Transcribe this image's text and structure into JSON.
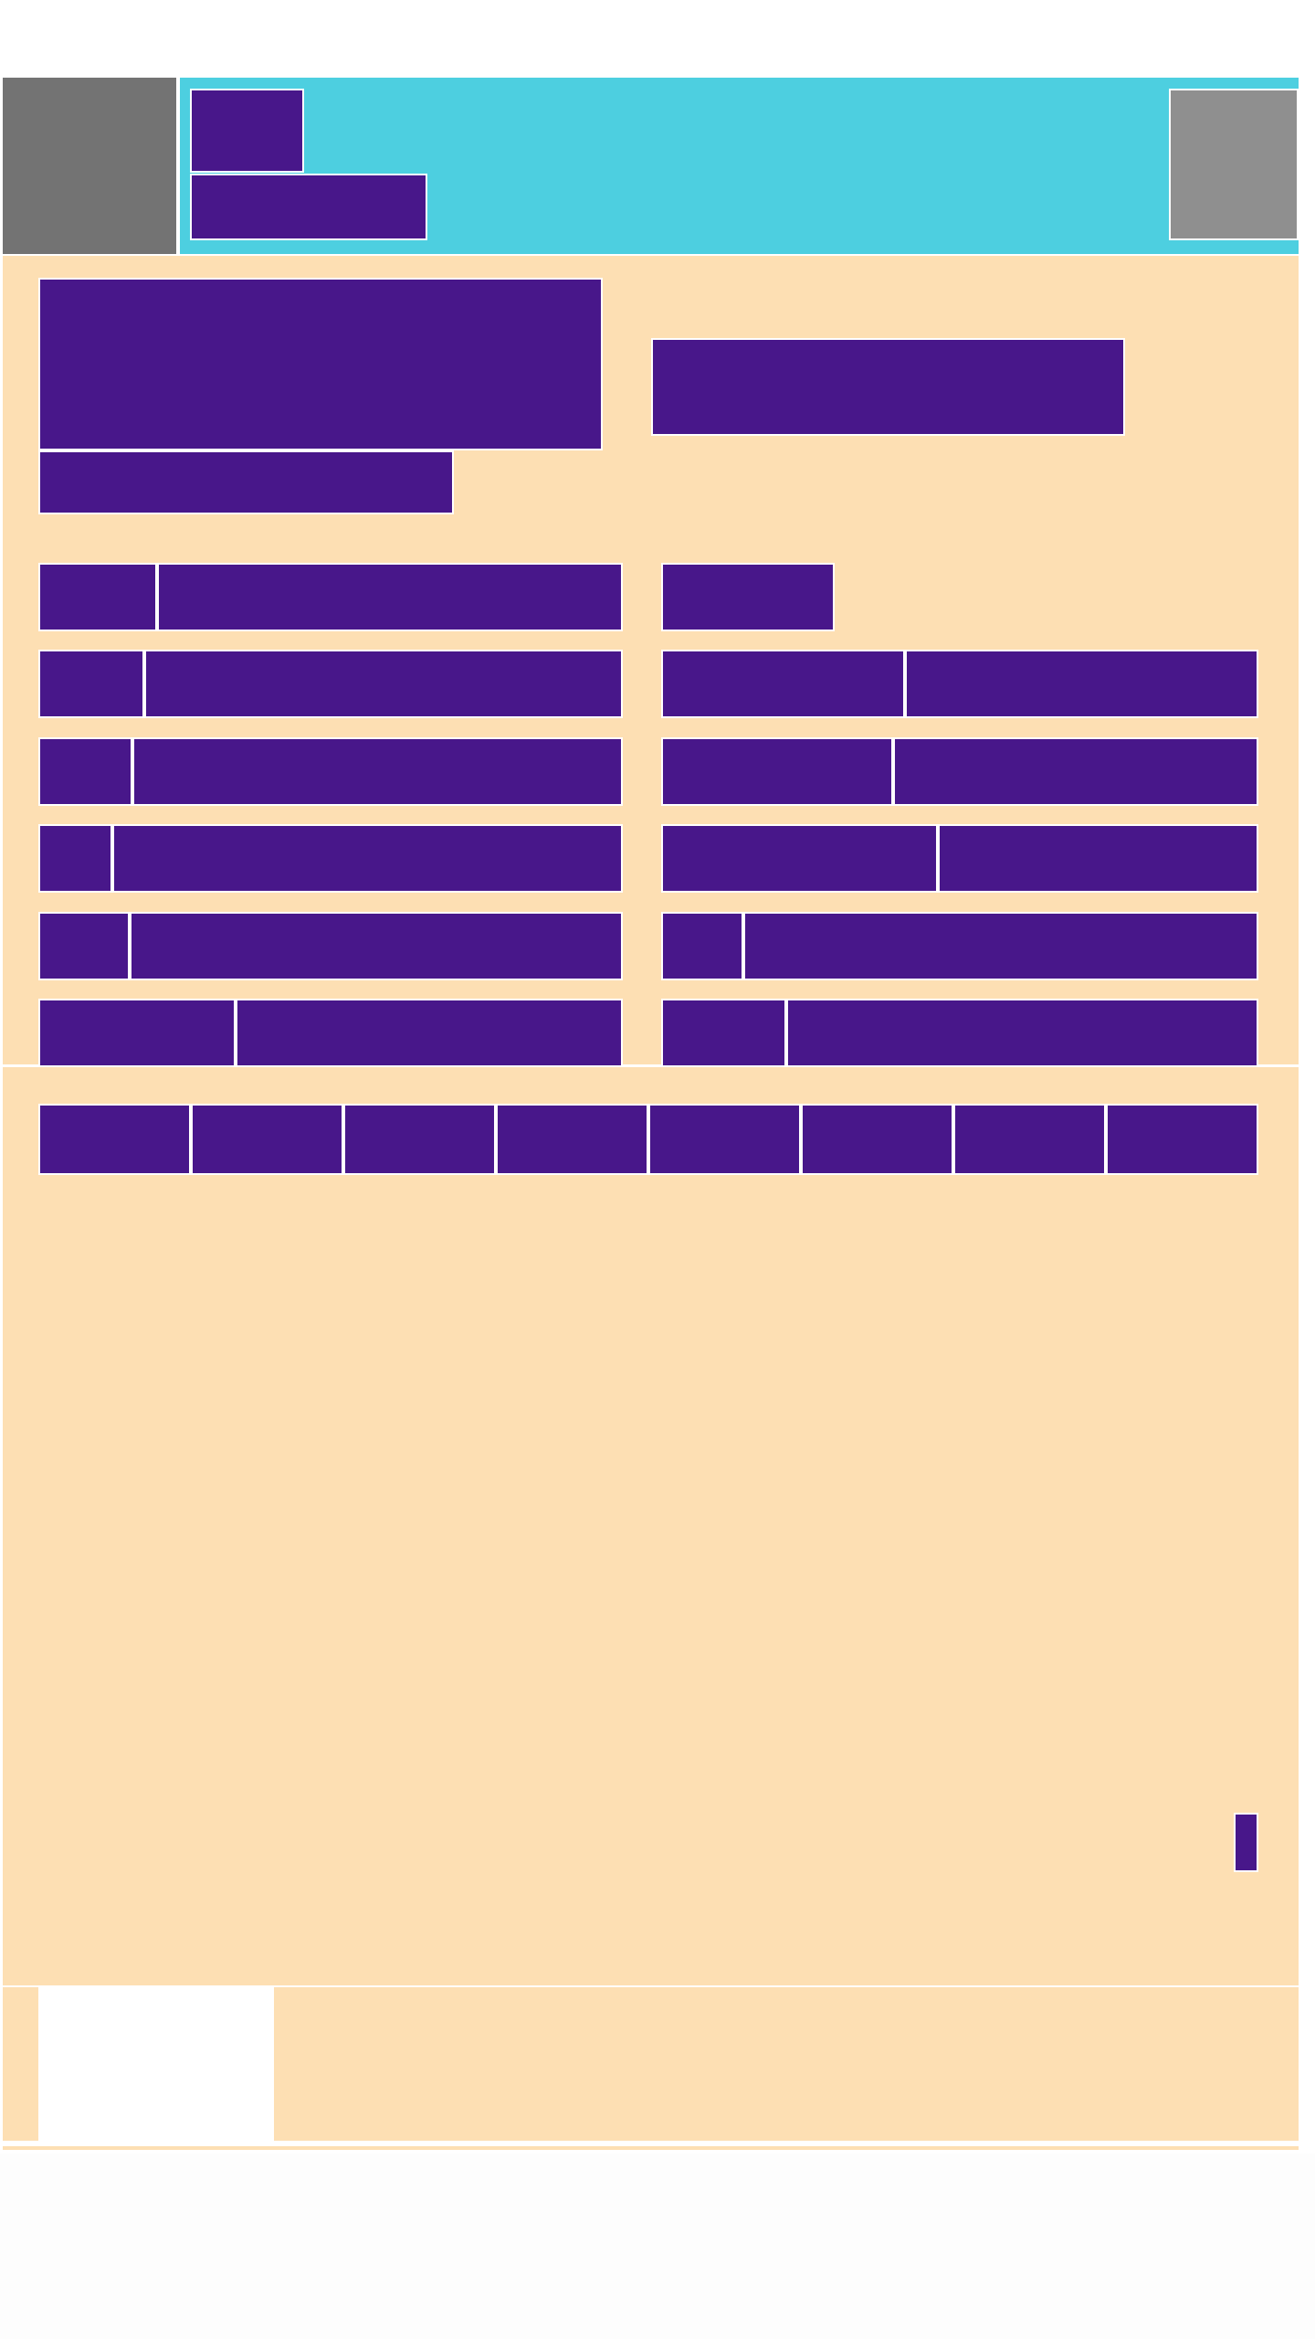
{
  "header": {
    "title": "",
    "subtitle": ""
  },
  "hero": {
    "title": "",
    "subtitle": "",
    "button_label": ""
  },
  "grid": {
    "rows": [
      {
        "left": {
          "key": "",
          "value": ""
        },
        "right": {
          "key": "",
          "value": ""
        }
      },
      {
        "left": {
          "key": "",
          "value": ""
        },
        "right": {
          "key": "",
          "value": ""
        }
      },
      {
        "left": {
          "key": "",
          "value": ""
        },
        "right": {
          "key": "",
          "value": ""
        }
      },
      {
        "left": {
          "key": "",
          "value": ""
        },
        "right": {
          "key": "",
          "value": ""
        }
      },
      {
        "left": {
          "key": "",
          "value": ""
        },
        "right": {
          "key": "",
          "value": ""
        }
      },
      {
        "left": {
          "key": "",
          "value": ""
        },
        "right": {
          "key": "",
          "value": ""
        }
      }
    ]
  },
  "tabs": [
    "",
    "",
    "",
    "",
    "",
    "",
    "",
    ""
  ],
  "colors": {
    "header_bar": "#4dcfe0",
    "block": "#48178a",
    "content_bg": "#fddfb3",
    "avatar_bg": "#737373",
    "thumb_bg": "#8f8f8f"
  },
  "icons": {
    "avatar": "avatar",
    "header_thumbnail": "image-placeholder-icon",
    "footer_thumbnail": "image-placeholder-icon"
  }
}
